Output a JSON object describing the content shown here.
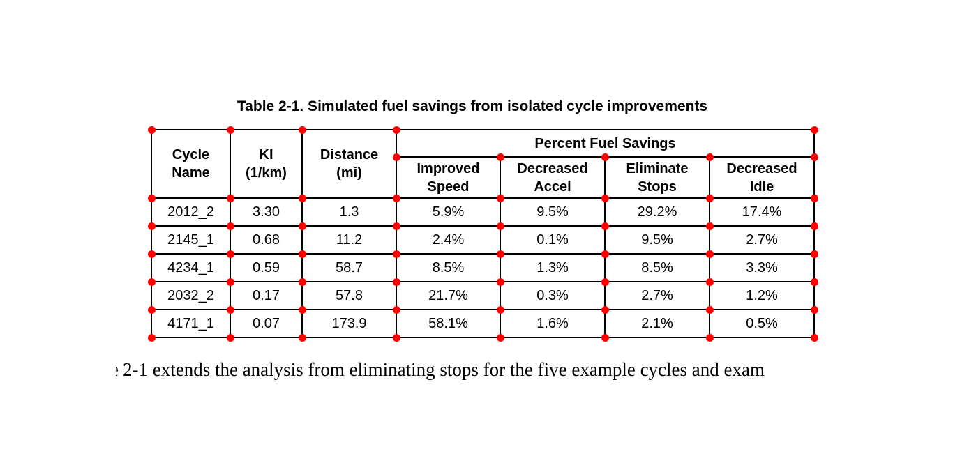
{
  "page": {
    "title": "Table 2-1. Simulated fuel savings from isolated cycle improvements",
    "paragraph": {
      "clipped_fragment": "e",
      "visible_text": "2-1 extends the analysis from eliminating stops for the five example cycles and exam"
    }
  },
  "chart_data": {
    "type": "table",
    "title": "Table 2-1. Simulated fuel savings from isolated cycle improvements",
    "group_header": "Percent Fuel Savings",
    "columns": [
      "Cycle\nName",
      "KI\n(1/km)",
      "Distance\n(mi)",
      "Improved\nSpeed",
      "Decreased\nAccel",
      "Eliminate\nStops",
      "Decreased\nIdle"
    ],
    "rows": [
      [
        "2012_2",
        "3.30",
        "1.3",
        "5.9%",
        "9.5%",
        "29.2%",
        "17.4%"
      ],
      [
        "2145_1",
        "0.68",
        "11.2",
        "2.4%",
        "0.1%",
        "9.5%",
        "2.7%"
      ],
      [
        "4234_1",
        "0.59",
        "58.7",
        "8.5%",
        "1.3%",
        "8.5%",
        "3.3%"
      ],
      [
        "2032_2",
        "0.17",
        "57.8",
        "21.7%",
        "0.3%",
        "2.7%",
        "1.2%"
      ],
      [
        "4171_1",
        "0.07",
        "173.9",
        "58.1%",
        "1.6%",
        "2.1%",
        "0.5%"
      ]
    ]
  },
  "annotations": {
    "dot_color": "#ff0000"
  }
}
